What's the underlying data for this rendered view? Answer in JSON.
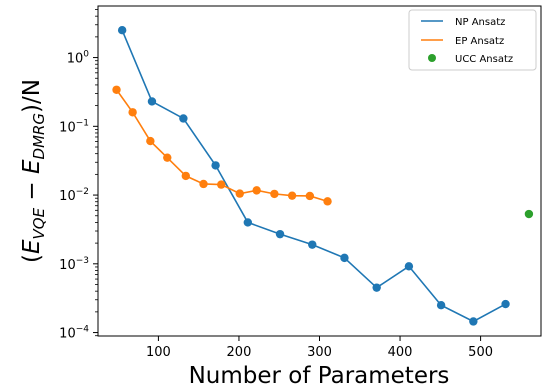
{
  "chart_data": {
    "type": "scatter",
    "xlabel": "Number of Parameters",
    "ylabel": "(E_{VQE} − E_{DMRG})/N",
    "ylabel_parts": {
      "open": "(",
      "e1": "E",
      "sub1": "VQE",
      "minus": " − ",
      "e2": "E",
      "sub2": "DMRG",
      "close": ")/N"
    },
    "xlim": [
      25,
      575
    ],
    "ylim_log10": [
      -4.05,
      0.75
    ],
    "yscale": "log",
    "x_ticks": [
      100,
      200,
      300,
      400,
      500
    ],
    "y_ticks": [
      {
        "exp": 0,
        "base": "10",
        "sup": "0"
      },
      {
        "exp": -1,
        "base": "10",
        "sup": "−1"
      },
      {
        "exp": -2,
        "base": "10",
        "sup": "−2"
      },
      {
        "exp": -3,
        "base": "10",
        "sup": "−3"
      },
      {
        "exp": -4,
        "base": "10",
        "sup": "−4"
      }
    ],
    "grid": false,
    "legend_position": "top-right",
    "series": [
      {
        "name": "NP Ansatz",
        "color": "#1f77b4",
        "style": "line-marker",
        "x": [
          55,
          92,
          131,
          171,
          211,
          251,
          291,
          331,
          371,
          411,
          451,
          491,
          531
        ],
        "y": [
          2.5,
          0.23,
          0.13,
          0.027,
          0.004,
          0.0027,
          0.0019,
          0.00122,
          0.00045,
          0.00092,
          0.00025,
          0.000145,
          0.00026
        ]
      },
      {
        "name": "EP Ansatz",
        "color": "#ff7f0e",
        "style": "line-marker",
        "x": [
          48,
          68,
          90,
          111,
          134,
          156,
          178,
          201,
          222,
          244,
          266,
          288,
          310
        ],
        "y": [
          0.34,
          0.16,
          0.061,
          0.035,
          0.019,
          0.0145,
          0.0142,
          0.0105,
          0.0117,
          0.0104,
          0.0098,
          0.0097,
          0.0081
        ]
      },
      {
        "name": "UCC Ansatz",
        "color": "#2ca02c",
        "style": "marker",
        "x": [
          560
        ],
        "y": [
          0.0053
        ]
      }
    ]
  }
}
